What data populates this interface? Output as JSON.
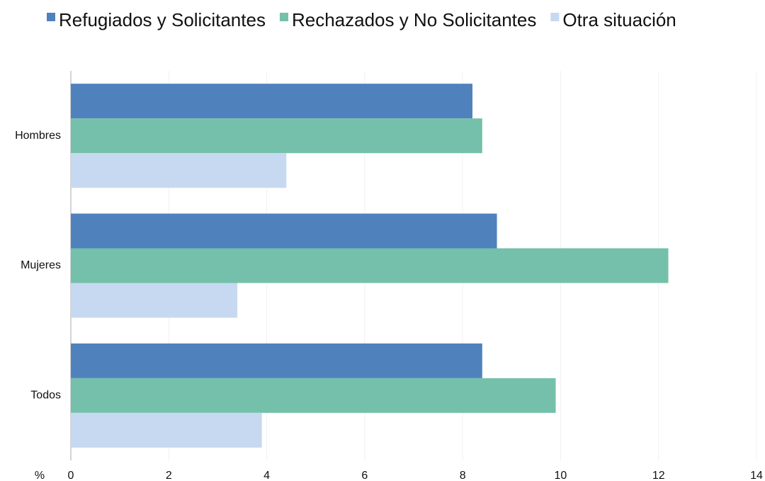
{
  "chart_data": {
    "type": "bar",
    "orientation": "horizontal",
    "categories": [
      "Hombres",
      "Mujeres",
      "Todos"
    ],
    "series": [
      {
        "name": "Refugiados y Solicitantes",
        "color": "#4f81bd",
        "values": [
          8.2,
          8.7,
          8.4
        ]
      },
      {
        "name": "Rechazados y No Solicitantes",
        "color": "#75c0aa",
        "values": [
          8.4,
          12.2,
          9.9
        ]
      },
      {
        "name": "Otra situación",
        "color": "#c6d9f0",
        "values": [
          4.4,
          3.4,
          3.9
        ]
      }
    ],
    "xlabel": "%",
    "xlim": [
      0,
      14
    ],
    "xticks": [
      0,
      2,
      4,
      6,
      8,
      10,
      12,
      14
    ],
    "grid": true,
    "legend": "top"
  }
}
